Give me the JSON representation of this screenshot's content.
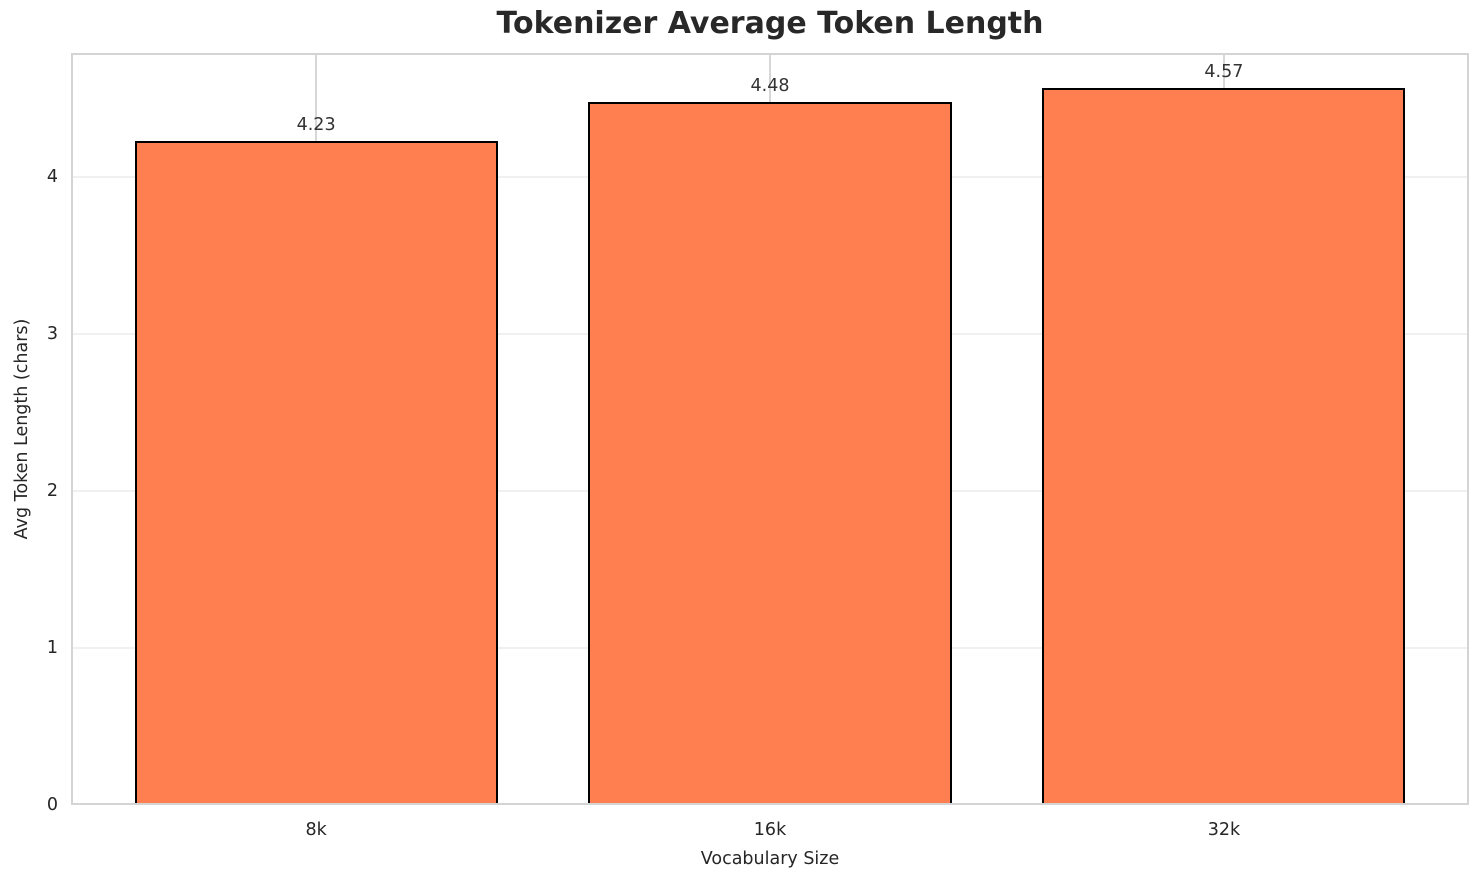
{
  "chart_data": {
    "type": "bar",
    "title": "Tokenizer Average Token Length",
    "xlabel": "Vocabulary Size",
    "ylabel": "Avg Token Length (chars)",
    "categories": [
      "8k",
      "16k",
      "32k"
    ],
    "values": [
      4.23,
      4.48,
      4.57
    ],
    "value_labels": [
      "4.23",
      "4.48",
      "4.57"
    ],
    "ytick_values": [
      0,
      1,
      2,
      3,
      4
    ],
    "ytick_labels": [
      "0",
      "1",
      "2",
      "3",
      "4"
    ],
    "ylim": [
      0,
      4.79
    ],
    "xlim": [
      -0.54,
      2.54
    ],
    "bar_width": 0.8,
    "grid": true,
    "legend_position": "none",
    "colors": {
      "bar_fill": "#FF7F50",
      "bar_edge": "#000000",
      "h_grid": "#f0f0f0",
      "v_grid": "#d7d7d7",
      "spine": "#d4d4d4",
      "text": "#262626",
      "title_text": "#282828",
      "background": "#ffffff"
    }
  }
}
